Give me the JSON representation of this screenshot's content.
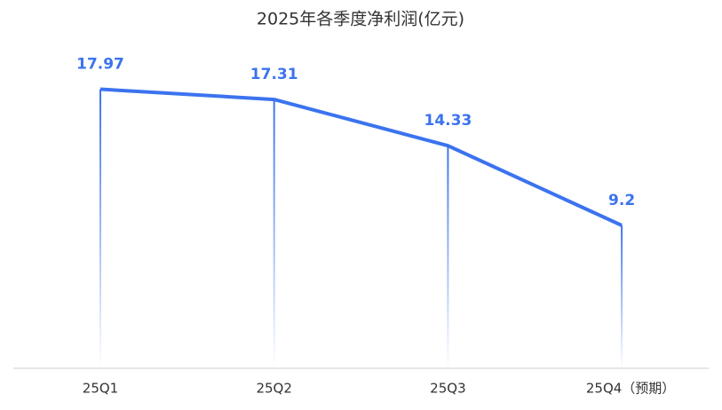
{
  "chart_data": {
    "type": "line",
    "title": "2025年各季度净利润(亿元)",
    "categories": [
      "25Q1",
      "25Q2",
      "25Q3",
      "25Q4（预期）"
    ],
    "values": [
      17.97,
      17.31,
      14.33,
      9.2
    ],
    "color": "#3b73ef",
    "ylim": [
      0,
      20
    ]
  }
}
